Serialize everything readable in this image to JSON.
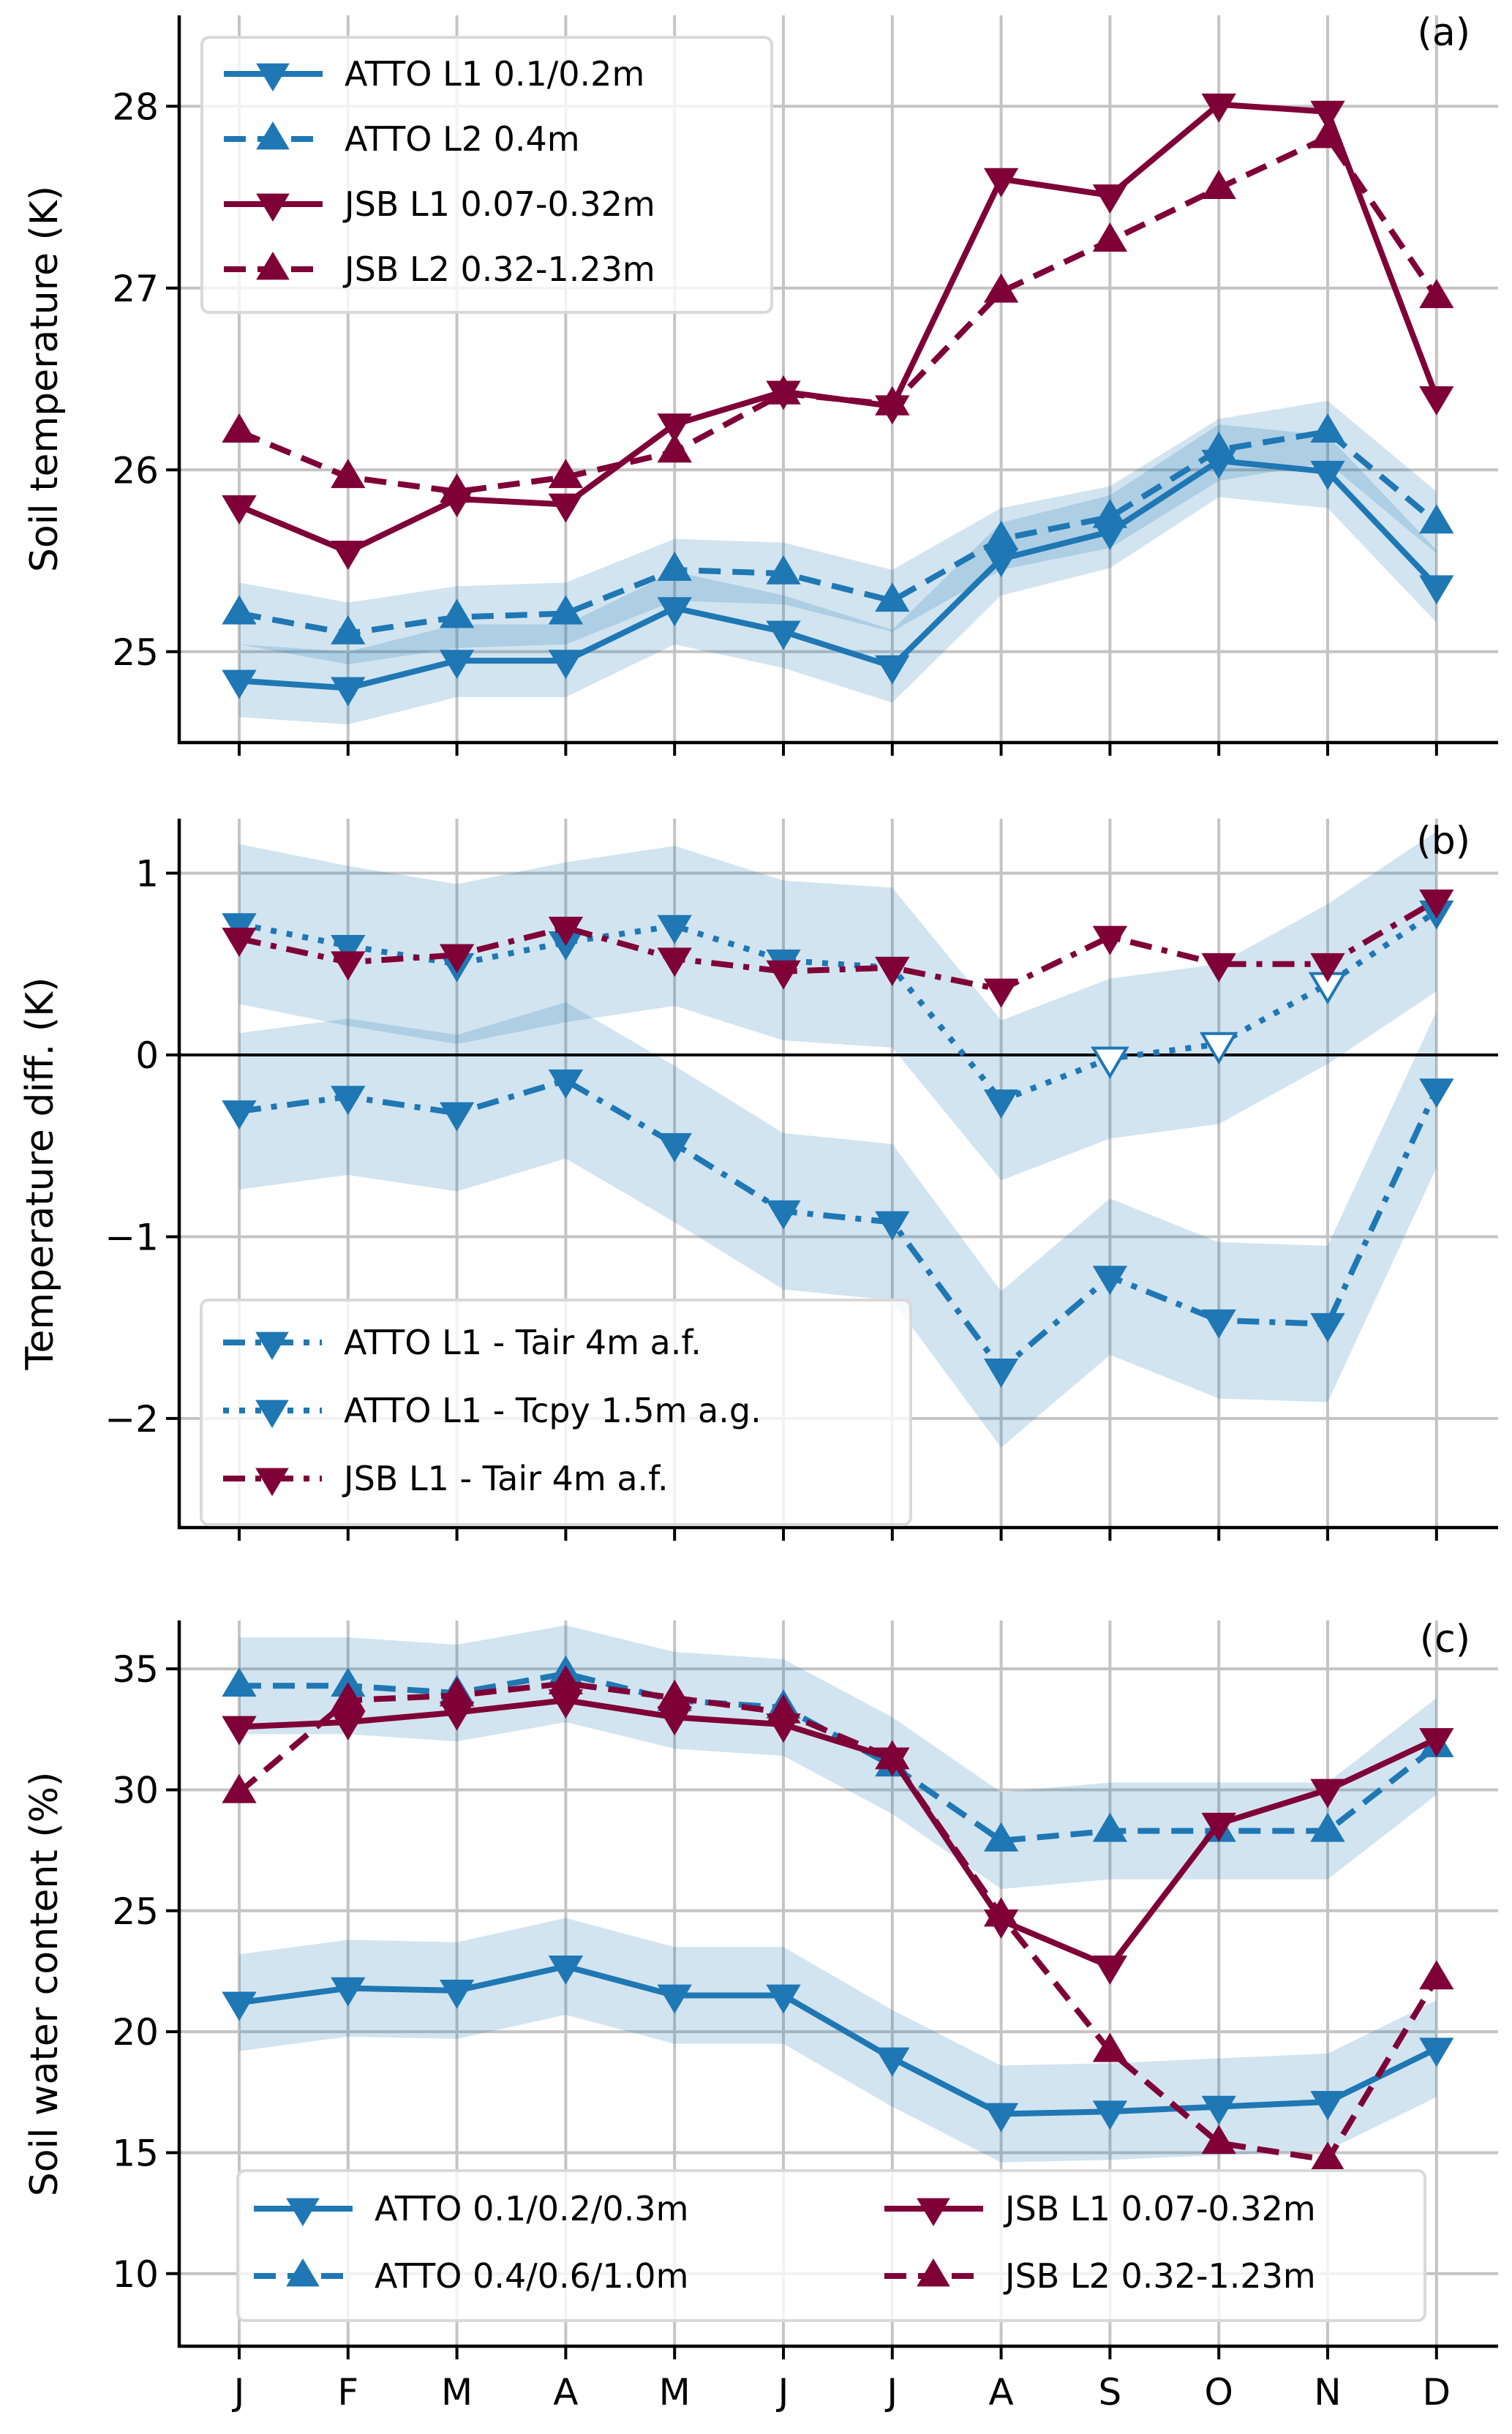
{
  "colors": {
    "atto": "#1f77b4",
    "jsb": "#7f0037",
    "band": "#1f77b4",
    "grid": "#c4c4c4"
  },
  "chart_data": [
    {
      "id": "a",
      "type": "line",
      "panel_label": "(a)",
      "title": "",
      "xlabel": "",
      "ylabel": "Soil temperature (K)",
      "categories": [
        "J",
        "F",
        "M",
        "A",
        "M",
        "J",
        "J",
        "A",
        "S",
        "O",
        "N",
        "D"
      ],
      "ylim": [
        24.5,
        28.5
      ],
      "yticks": [
        25,
        26,
        27,
        28
      ],
      "ytick_labels": [
        "25",
        "26",
        "27",
        "28"
      ],
      "grid": true,
      "legend_position": "top-left",
      "legend_columns": 1,
      "series": [
        {
          "name": "ATTO L1 0.1/0.2m",
          "color_key": "atto",
          "linestyle": "solid",
          "marker": "down",
          "values": [
            24.84,
            24.8,
            24.95,
            24.95,
            25.24,
            25.11,
            24.92,
            25.51,
            25.66,
            26.05,
            25.99,
            25.36
          ],
          "band": 0.2
        },
        {
          "name": "ATTO L2 0.4m",
          "color_key": "atto",
          "linestyle": "dashed",
          "marker": "up",
          "values": [
            25.21,
            25.1,
            25.19,
            25.21,
            25.45,
            25.43,
            25.28,
            25.62,
            25.74,
            26.11,
            26.21,
            25.71
          ],
          "band": 0.17
        },
        {
          "name": "JSB L1 0.07-0.32m",
          "color_key": "jsb",
          "linestyle": "solid",
          "marker": "down",
          "values": [
            25.8,
            25.55,
            25.84,
            25.81,
            26.25,
            26.43,
            26.35,
            27.6,
            27.51,
            28.01,
            27.97,
            26.4
          ]
        },
        {
          "name": "JSB L2 0.32-1.23m",
          "color_key": "jsb",
          "linestyle": "dashed",
          "marker": "up",
          "values": [
            26.21,
            25.96,
            25.88,
            25.96,
            26.1,
            26.42,
            26.36,
            26.98,
            27.26,
            27.55,
            27.83,
            26.95
          ]
        }
      ]
    },
    {
      "id": "b",
      "type": "line",
      "panel_label": "(b)",
      "title": "",
      "xlabel": "",
      "ylabel": "Temperature diff. (K)",
      "categories": [
        "J",
        "F",
        "M",
        "A",
        "M",
        "J",
        "J",
        "A",
        "S",
        "O",
        "N",
        "D"
      ],
      "ylim": [
        -2.6,
        1.3
      ],
      "yticks": [
        -2,
        -1,
        0,
        1
      ],
      "ytick_labels": [
        "−2",
        "−1",
        "0",
        "1"
      ],
      "zero_line": true,
      "grid": true,
      "legend_position": "bottom-left",
      "legend_columns": 1,
      "series": [
        {
          "name": "ATTO L1 - Tair 4m a.f.",
          "color_key": "atto",
          "linestyle": "dashdot",
          "marker": "down",
          "values": [
            -0.31,
            -0.23,
            -0.32,
            -0.14,
            -0.49,
            -0.86,
            -0.92,
            -1.73,
            -1.22,
            -1.46,
            -1.48,
            -0.19
          ],
          "band": 0.43
        },
        {
          "name": "ATTO L1 - Tcpy 1.5m a.g.",
          "color_key": "atto",
          "linestyle": "dotted",
          "marker": "down",
          "values": [
            0.72,
            0.6,
            0.5,
            0.62,
            0.71,
            0.52,
            0.48,
            -0.25,
            -0.02,
            0.06,
            0.39,
            0.79
          ],
          "band": 0.44,
          "hollow_markers_at": [
            8,
            9,
            10
          ]
        },
        {
          "name": "JSB L1 - Tair 4m a.f.",
          "color_key": "jsb",
          "linestyle": "dashdot",
          "marker": "down",
          "values": [
            0.64,
            0.51,
            0.55,
            0.7,
            0.53,
            0.46,
            0.48,
            0.36,
            0.65,
            0.5,
            0.5,
            0.85
          ]
        }
      ]
    },
    {
      "id": "c",
      "type": "line",
      "panel_label": "(c)",
      "title": "",
      "xlabel": "",
      "ylabel": "Soil water content (%)",
      "categories": [
        "J",
        "F",
        "M",
        "A",
        "M",
        "J",
        "J",
        "A",
        "S",
        "O",
        "N",
        "D"
      ],
      "ylim": [
        7,
        37
      ],
      "yticks": [
        10,
        15,
        20,
        25,
        30,
        35
      ],
      "ytick_labels": [
        "10",
        "15",
        "20",
        "25",
        "30",
        "35"
      ],
      "grid": true,
      "legend_position": "bottom",
      "legend_columns": 2,
      "series": [
        {
          "name": "ATTO 0.1/0.2/0.3m",
          "color_key": "atto",
          "linestyle": "solid",
          "marker": "down",
          "values": [
            21.2,
            21.8,
            21.7,
            22.7,
            21.5,
            21.5,
            18.9,
            16.6,
            16.7,
            16.9,
            17.1,
            19.3
          ],
          "band": 2.0
        },
        {
          "name": "ATTO 0.4/0.6/1.0m",
          "color_key": "atto",
          "linestyle": "dashed",
          "marker": "up",
          "values": [
            34.3,
            34.3,
            34.0,
            34.8,
            33.7,
            33.4,
            31.0,
            27.9,
            28.3,
            28.3,
            28.3,
            31.8
          ],
          "band": 2.0
        },
        {
          "name": "JSB L1 0.07-0.32m",
          "color_key": "jsb",
          "linestyle": "solid",
          "marker": "down",
          "values": [
            32.6,
            32.8,
            33.2,
            33.7,
            33.0,
            32.7,
            31.3,
            24.6,
            22.7,
            28.6,
            30.0,
            32.1
          ]
        },
        {
          "name": "JSB L2 0.32-1.23m",
          "color_key": "jsb",
          "linestyle": "dashed",
          "marker": "up",
          "values": [
            29.9,
            33.7,
            33.9,
            34.4,
            33.8,
            33.2,
            31.3,
            24.8,
            19.2,
            15.4,
            14.7,
            22.2
          ]
        }
      ]
    }
  ]
}
